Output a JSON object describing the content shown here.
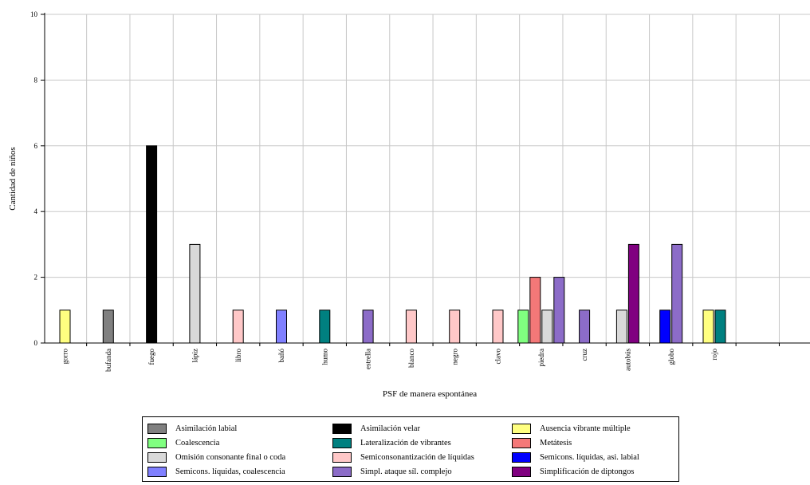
{
  "chart_data": {
    "type": "bar",
    "title": "",
    "xlabel": "PSF de manera espontánea",
    "ylabel": "Cantidad de niños",
    "ylim": [
      0,
      10
    ],
    "yticks": [
      "0",
      "2",
      "4",
      "6",
      "8",
      "10"
    ],
    "grid": true,
    "legend_position": "bottom",
    "categories": [
      "gorro",
      "bufanda",
      "fuego",
      "lápiz",
      "libro",
      "bañó",
      "humo",
      "estrella",
      "blanco",
      "negro",
      "clavo",
      "piedra",
      "cruz",
      "autobús",
      "globo",
      "rojo"
    ],
    "series": [
      {
        "name": "Asimilación labial",
        "color": "#808080",
        "values": [
          0,
          1,
          0,
          0,
          0,
          0,
          0,
          0,
          0,
          0,
          0,
          0,
          0,
          0,
          0,
          0
        ]
      },
      {
        "name": "Asimilación velar",
        "color": "#000000",
        "values": [
          0,
          0,
          6,
          0,
          0,
          0,
          0,
          0,
          0,
          0,
          0,
          0,
          0,
          0,
          0,
          0
        ]
      },
      {
        "name": "Ausencia vibrante múltiple",
        "color": "#ffff80",
        "values": [
          1,
          0,
          0,
          0,
          0,
          0,
          0,
          0,
          0,
          0,
          0,
          0,
          0,
          0,
          0,
          1
        ]
      },
      {
        "name": "Coalescencia",
        "color": "#80ff80",
        "values": [
          0,
          0,
          0,
          0,
          0,
          0,
          0,
          0,
          0,
          0,
          0,
          1,
          0,
          0,
          0,
          0
        ]
      },
      {
        "name": "Lateralización de vibrantes",
        "color": "#008080",
        "values": [
          0,
          0,
          0,
          0,
          0,
          0,
          1,
          0,
          0,
          0,
          0,
          0,
          0,
          0,
          0,
          1
        ]
      },
      {
        "name": "Metátesis",
        "color": "#f47878",
        "values": [
          0,
          0,
          0,
          0,
          0,
          0,
          0,
          0,
          0,
          0,
          0,
          2,
          0,
          0,
          0,
          0
        ]
      },
      {
        "name": "Omisión consonante final o coda",
        "color": "#d9d9d9",
        "values": [
          0,
          0,
          0,
          3,
          0,
          0,
          0,
          0,
          0,
          0,
          0,
          1,
          0,
          1,
          0,
          0
        ]
      },
      {
        "name": "Semiconsonantización de líquidas",
        "color": "#ffc8c8",
        "values": [
          0,
          0,
          0,
          0,
          1,
          0,
          0,
          0,
          1,
          1,
          1,
          0,
          0,
          0,
          0,
          0
        ]
      },
      {
        "name": "Semicons. líquidas, asi. labial",
        "color": "#0000ff",
        "values": [
          0,
          0,
          0,
          0,
          0,
          0,
          0,
          0,
          0,
          0,
          0,
          0,
          0,
          0,
          1,
          0
        ]
      },
      {
        "name": "Semicons. líquidas, coalescencia",
        "color": "#8080ff",
        "values": [
          0,
          0,
          0,
          0,
          0,
          1,
          0,
          0,
          0,
          0,
          0,
          0,
          0,
          0,
          0,
          0
        ]
      },
      {
        "name": "Simpl. ataque síl. complejo",
        "color": "#8c6cc8",
        "values": [
          0,
          0,
          0,
          0,
          0,
          0,
          0,
          1,
          0,
          0,
          0,
          2,
          1,
          0,
          3,
          0
        ]
      },
      {
        "name": "Simplificación de diptongos",
        "color": "#800080",
        "values": [
          0,
          0,
          0,
          0,
          0,
          0,
          0,
          0,
          0,
          0,
          0,
          0,
          0,
          3,
          0,
          0
        ]
      }
    ]
  }
}
